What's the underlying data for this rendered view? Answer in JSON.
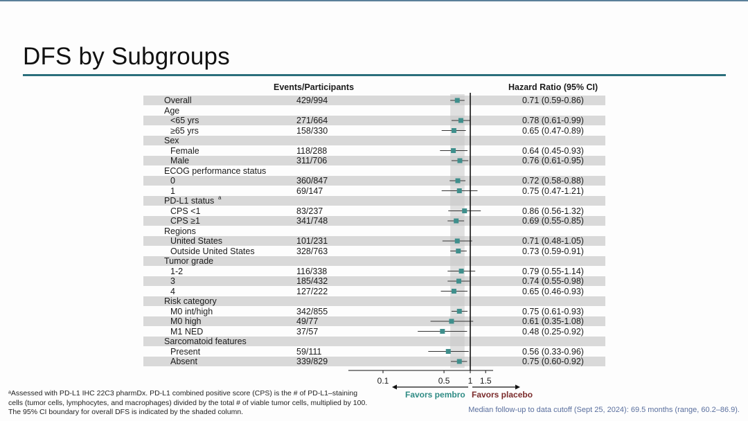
{
  "slide": {
    "title": "DFS by Subgroups",
    "footnote_lines": [
      "ᵃAssessed with PD-L1 IHC 22C3 pharmDx. PD-L1 combined positive score (CPS) is the # of PD-L1–staining",
      "cells (tumor cells, lymphocytes, and macrophages) divided by the total # of viable tumor cells, multiplied by 100.",
      "The 95% CI boundary for overall DFS is indicated by the shaded column."
    ],
    "followup": "Median follow-up to data cutoff (Sept 25, 2024): 69.5 months (range, 60.2–86.9).",
    "colors": {
      "accent_rule": "#2b6f7c",
      "marker": "#3f8f8c",
      "favors_pembro": "#2e8b84",
      "favors_placebo": "#7a2a2a",
      "row_shade": "#d9d9d9"
    }
  },
  "chart_data": {
    "type": "forest",
    "columns": {
      "events": "Events/Participants",
      "hr": "Hazard Ratio (95% CI)"
    },
    "x_axis": {
      "scale": "log",
      "ticks": [
        0.1,
        0.5,
        1,
        1.5
      ],
      "tick_labels": [
        "0.1",
        "0.5",
        "1",
        "1.5"
      ],
      "reference": 1
    },
    "favors_left": "Favors pembro",
    "favors_right": "Favors placebo",
    "overall_ci_band": [
      0.59,
      0.86
    ],
    "rows": [
      {
        "label": "Overall",
        "indent": 0,
        "events": "429/994",
        "hr": 0.71,
        "lo": 0.59,
        "hi": 0.86,
        "text": "0.71 (0.59-0.86)"
      },
      {
        "label": "Age",
        "indent": 0
      },
      {
        "label": "<65 yrs",
        "indent": 1,
        "events": "271/664",
        "hr": 0.78,
        "lo": 0.61,
        "hi": 0.99,
        "text": "0.78 (0.61-0.99)"
      },
      {
        "label": "≥65 yrs",
        "indent": 1,
        "events": "158/330",
        "hr": 0.65,
        "lo": 0.47,
        "hi": 0.89,
        "text": "0.65 (0.47-0.89)"
      },
      {
        "label": "Sex",
        "indent": 0
      },
      {
        "label": "Female",
        "indent": 1,
        "events": "118/288",
        "hr": 0.64,
        "lo": 0.45,
        "hi": 0.93,
        "text": "0.64 (0.45-0.93)"
      },
      {
        "label": "Male",
        "indent": 1,
        "events": "311/706",
        "hr": 0.76,
        "lo": 0.61,
        "hi": 0.95,
        "text": "0.76 (0.61-0.95)"
      },
      {
        "label": "ECOG performance status",
        "indent": 0
      },
      {
        "label": "0",
        "indent": 1,
        "events": "360/847",
        "hr": 0.72,
        "lo": 0.58,
        "hi": 0.88,
        "text": "0.72 (0.58-0.88)"
      },
      {
        "label": "1",
        "indent": 1,
        "events": "69/147",
        "hr": 0.75,
        "lo": 0.47,
        "hi": 1.21,
        "text": "0.75 (0.47-1.21)"
      },
      {
        "label": "PD-L1 status",
        "sup": "a",
        "indent": 0
      },
      {
        "label": "CPS <1",
        "indent": 1,
        "events": "83/237",
        "hr": 0.86,
        "lo": 0.56,
        "hi": 1.32,
        "text": "0.86 (0.56-1.32)"
      },
      {
        "label": "CPS ≥1",
        "indent": 1,
        "events": "341/748",
        "hr": 0.69,
        "lo": 0.55,
        "hi": 0.85,
        "text": "0.69 (0.55-0.85)"
      },
      {
        "label": "Regions",
        "indent": 0
      },
      {
        "label": "United States",
        "indent": 1,
        "events": "101/231",
        "hr": 0.71,
        "lo": 0.48,
        "hi": 1.05,
        "text": "0.71 (0.48-1.05)"
      },
      {
        "label": "Outside United States",
        "indent": 1,
        "events": "328/763",
        "hr": 0.73,
        "lo": 0.59,
        "hi": 0.91,
        "text": "0.73 (0.59-0.91)"
      },
      {
        "label": "Tumor grade",
        "indent": 0
      },
      {
        "label": "1-2",
        "indent": 1,
        "events": "116/338",
        "hr": 0.79,
        "lo": 0.55,
        "hi": 1.14,
        "text": "0.79 (0.55-1.14)"
      },
      {
        "label": "3",
        "indent": 1,
        "events": "185/432",
        "hr": 0.74,
        "lo": 0.55,
        "hi": 0.98,
        "text": "0.74 (0.55-0.98)"
      },
      {
        "label": "4",
        "indent": 1,
        "events": "127/222",
        "hr": 0.65,
        "lo": 0.46,
        "hi": 0.93,
        "text": "0.65 (0.46-0.93)"
      },
      {
        "label": "Risk category",
        "indent": 0
      },
      {
        "label": "M0 int/high",
        "indent": 1,
        "events": "342/855",
        "hr": 0.75,
        "lo": 0.61,
        "hi": 0.93,
        "text": "0.75 (0.61-0.93)"
      },
      {
        "label": "M0 high",
        "indent": 1,
        "events": "49/77",
        "hr": 0.61,
        "lo": 0.35,
        "hi": 1.08,
        "text": "0.61 (0.35-1.08)"
      },
      {
        "label": "M1 NED",
        "indent": 1,
        "events": "37/57",
        "hr": 0.48,
        "lo": 0.25,
        "hi": 0.92,
        "text": "0.48 (0.25-0.92)"
      },
      {
        "label": "Sarcomatoid features",
        "indent": 0
      },
      {
        "label": "Present",
        "indent": 1,
        "events": "59/111",
        "hr": 0.56,
        "lo": 0.33,
        "hi": 0.96,
        "text": "0.56 (0.33-0.96)"
      },
      {
        "label": "Absent",
        "indent": 1,
        "events": "339/829",
        "hr": 0.75,
        "lo": 0.6,
        "hi": 0.92,
        "text": "0.75 (0.60-0.92)"
      }
    ]
  }
}
